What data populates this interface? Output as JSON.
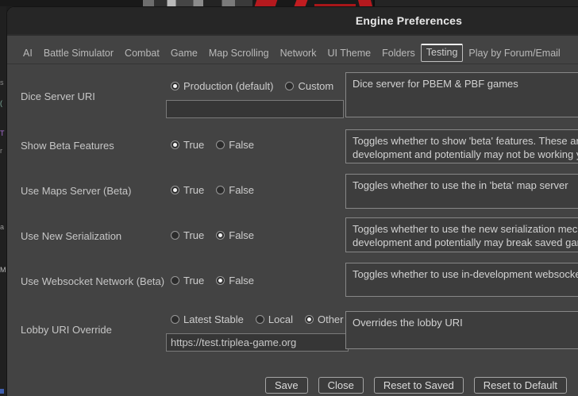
{
  "window": {
    "title": "Engine Preferences"
  },
  "tabs": {
    "selected": "Testing",
    "items": [
      "AI",
      "Battle Simulator",
      "Combat",
      "Game",
      "Map Scrolling",
      "Network",
      "UI Theme",
      "Folders",
      "Testing",
      "Play by Forum/Email"
    ]
  },
  "rows": [
    {
      "label": "Dice Server URI",
      "options": [
        {
          "label": "Production (default)",
          "selected": true
        },
        {
          "label": "Custom",
          "selected": false
        }
      ],
      "input": {
        "value": ""
      },
      "description": "Dice server for PBEM & PBF games"
    },
    {
      "label": "Show Beta Features",
      "options": [
        {
          "label": "True",
          "selected": true
        },
        {
          "label": "False",
          "selected": false
        }
      ],
      "description": "Toggles whether to show 'beta' features. These are\ndevelopment and potentially may not be working ye"
    },
    {
      "label": "Use Maps Server (Beta)",
      "options": [
        {
          "label": "True",
          "selected": true
        },
        {
          "label": "False",
          "selected": false
        }
      ],
      "description": "Toggles whether to use the in 'beta' map server"
    },
    {
      "label": "Use New Serialization",
      "options": [
        {
          "label": "True",
          "selected": false
        },
        {
          "label": "False",
          "selected": true
        }
      ],
      "description": "Toggles whether to use the new serialization mech\ndevelopment and potentially may break saved gam"
    },
    {
      "label": "Use Websocket Network (Beta)",
      "options": [
        {
          "label": "True",
          "selected": false
        },
        {
          "label": "False",
          "selected": true
        }
      ],
      "description": "Toggles whether to use in-development websocket"
    },
    {
      "label": "Lobby URI Override",
      "options": [
        {
          "label": "Latest Stable",
          "selected": false
        },
        {
          "label": "Local",
          "selected": false
        },
        {
          "label": "Other",
          "selected": true
        }
      ],
      "input": {
        "value": "https://test.triplea-game.org"
      },
      "description": "Overrides the lobby URI"
    }
  ],
  "footer": {
    "buttons": [
      "Save",
      "Close",
      "Reset to Saved",
      "Reset to Default"
    ]
  },
  "background": {
    "left_fragments": [
      "s",
      "(",
      "T",
      "r",
      "a",
      "M"
    ]
  },
  "colors": {
    "dialog_bg": "#434343",
    "titlebar_bg": "#262626",
    "logo_red": "#b5191e"
  }
}
